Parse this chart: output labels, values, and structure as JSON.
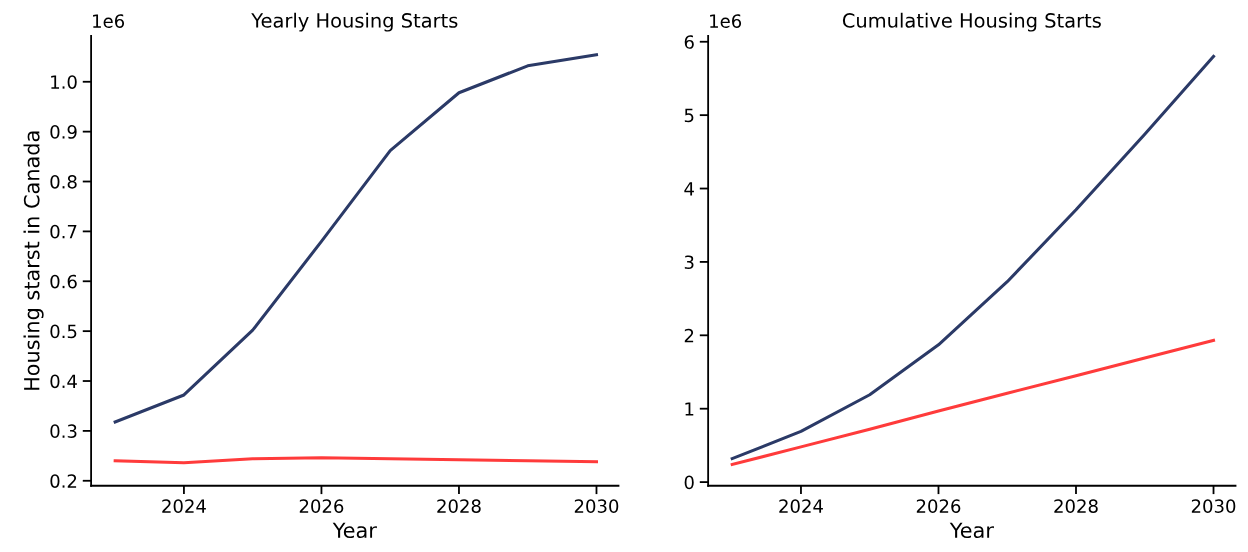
{
  "chart_data": [
    {
      "type": "line",
      "title": "Yearly Housing Starts",
      "xlabel": "Year",
      "ylabel": "Housing starst in Canada",
      "annotations": [
        "1e6"
      ],
      "x": [
        2023,
        2024,
        2025,
        2026,
        2027,
        2028,
        2029,
        2030
      ],
      "series": [
        {
          "color": "#2b3a67",
          "values": [
            0.318,
            0.372,
            0.502,
            0.68,
            0.862,
            0.978,
            1.032,
            1.054
          ]
        },
        {
          "color": "#ff3b3b",
          "values": [
            0.24,
            0.236,
            0.244,
            0.246,
            0.244,
            0.242,
            0.24,
            0.238
          ]
        }
      ],
      "xlim": [
        2022.65,
        2030.32
      ],
      "xticks": [
        2024,
        2026,
        2028,
        2030
      ],
      "ylim": [
        0.19,
        1.092
      ],
      "yticks": [
        0.2,
        0.3,
        0.4,
        0.5,
        0.6,
        0.7,
        0.8,
        0.9,
        {
          "value": 1.0,
          "label": "1.0"
        }
      ],
      "grid": false,
      "legend": false
    },
    {
      "type": "line",
      "title": "Cumulative Housing Starts",
      "xlabel": "Year",
      "annotations": [
        "1e6"
      ],
      "x": [
        2023,
        2024,
        2025,
        2026,
        2027,
        2028,
        2029,
        2030
      ],
      "series": [
        {
          "color": "#2b3a67",
          "values": [
            0.32,
            0.69,
            1.19,
            1.87,
            2.73,
            3.71,
            4.74,
            5.8
          ]
        },
        {
          "color": "#ff3b3b",
          "values": [
            0.24,
            0.48,
            0.72,
            0.97,
            1.21,
            1.45,
            1.69,
            1.93
          ]
        }
      ],
      "xlim": [
        2022.65,
        2030.32
      ],
      "xticks": [
        2024,
        2026,
        2028,
        2030
      ],
      "ylim": [
        -0.05,
        6.08
      ],
      "yticks": [
        0,
        1,
        2,
        3,
        4,
        5,
        6
      ],
      "grid": false,
      "legend": false
    }
  ]
}
